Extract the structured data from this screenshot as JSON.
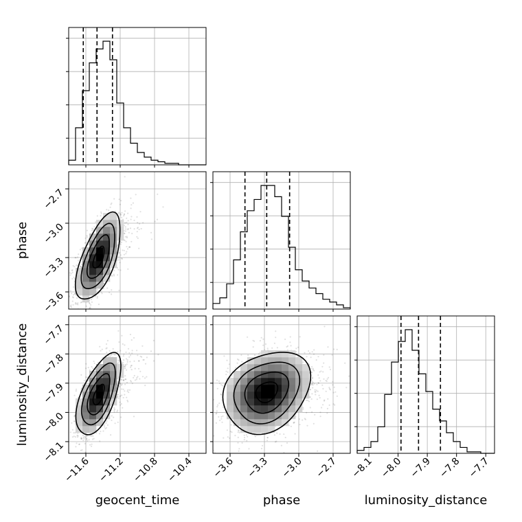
{
  "chart_data": {
    "type": "scatter",
    "kind": "corner-plot",
    "parameters": [
      "geocent_time",
      "phase",
      "luminosity_distance"
    ],
    "xlabels": [
      "geocent_time",
      "phase",
      "luminosity_distance"
    ],
    "ylabels": [
      "",
      "phase",
      "luminosity_distance"
    ],
    "ranges": [
      [
        -11.8,
        -10.2
      ],
      [
        -3.75,
        -2.55
      ],
      [
        -8.14,
        -7.67
      ]
    ],
    "ticks": {
      "geocent_time": [
        "−11.6",
        "−11.2",
        "−10.8",
        "−10.4"
      ],
      "phase": [
        "−3.6",
        "−3.3",
        "−3.0",
        "−2.7"
      ],
      "luminosity_distance": [
        "−8.1",
        "−8.0",
        "−7.9",
        "−7.8",
        "−7.7"
      ]
    },
    "tick_values": {
      "geocent_time": [
        -11.6,
        -11.2,
        -10.8,
        -10.4
      ],
      "phase": [
        -3.6,
        -3.3,
        -3.0,
        -2.7
      ],
      "luminosity_distance": [
        -8.1,
        -8.0,
        -7.9,
        -7.8,
        -7.7
      ]
    },
    "marginals": [
      {
        "parameter": "geocent_time",
        "bins": [
          -11.8,
          -10.2
        ],
        "counts": [
          3,
          24,
          48,
          66,
          75,
          80,
          68,
          40,
          24,
          14,
          8,
          5,
          3,
          2,
          1,
          1,
          0,
          0,
          0,
          0
        ],
        "quantiles": [
          -11.63,
          -11.47,
          -11.29
        ]
      },
      {
        "parameter": "phase",
        "bins": [
          -3.75,
          -2.55
        ],
        "counts": [
          4,
          8,
          18,
          35,
          55,
          70,
          78,
          88,
          88,
          80,
          66,
          44,
          28,
          20,
          15,
          11,
          7,
          5,
          3,
          1
        ],
        "quantiles": [
          -3.47,
          -3.28,
          -3.08
        ]
      },
      {
        "parameter": "luminosity_distance",
        "bins": [
          -8.14,
          -7.67
        ],
        "counts": [
          2,
          4,
          8,
          18,
          40,
          62,
          76,
          84,
          70,
          54,
          42,
          30,
          22,
          14,
          8,
          4,
          1,
          1,
          0,
          0
        ],
        "quantiles": [
          -7.99,
          -7.93,
          -7.855
        ]
      }
    ],
    "joint": [
      {
        "x": "geocent_time",
        "y": "phase",
        "mean": [
          -11.45,
          -3.3
        ],
        "sd": [
          0.13,
          0.19
        ],
        "rho": 0.62,
        "density_peak": [
          -11.47,
          -3.3
        ]
      },
      {
        "x": "geocent_time",
        "y": "luminosity_distance",
        "mean": [
          -11.45,
          -7.94
        ],
        "sd": [
          0.13,
          0.07
        ],
        "rho": 0.6,
        "density_peak": [
          -11.47,
          -7.95
        ]
      },
      {
        "x": "phase",
        "y": "luminosity_distance",
        "mean": [
          -3.28,
          -7.93
        ],
        "sd": [
          0.19,
          0.07
        ],
        "rho": 0.25,
        "density_peak": [
          -3.27,
          -7.935
        ]
      }
    ],
    "contour_levels_sigma": [
      0.5,
      1.0,
      1.5,
      2.0
    ],
    "grid": true,
    "legend": "none"
  }
}
